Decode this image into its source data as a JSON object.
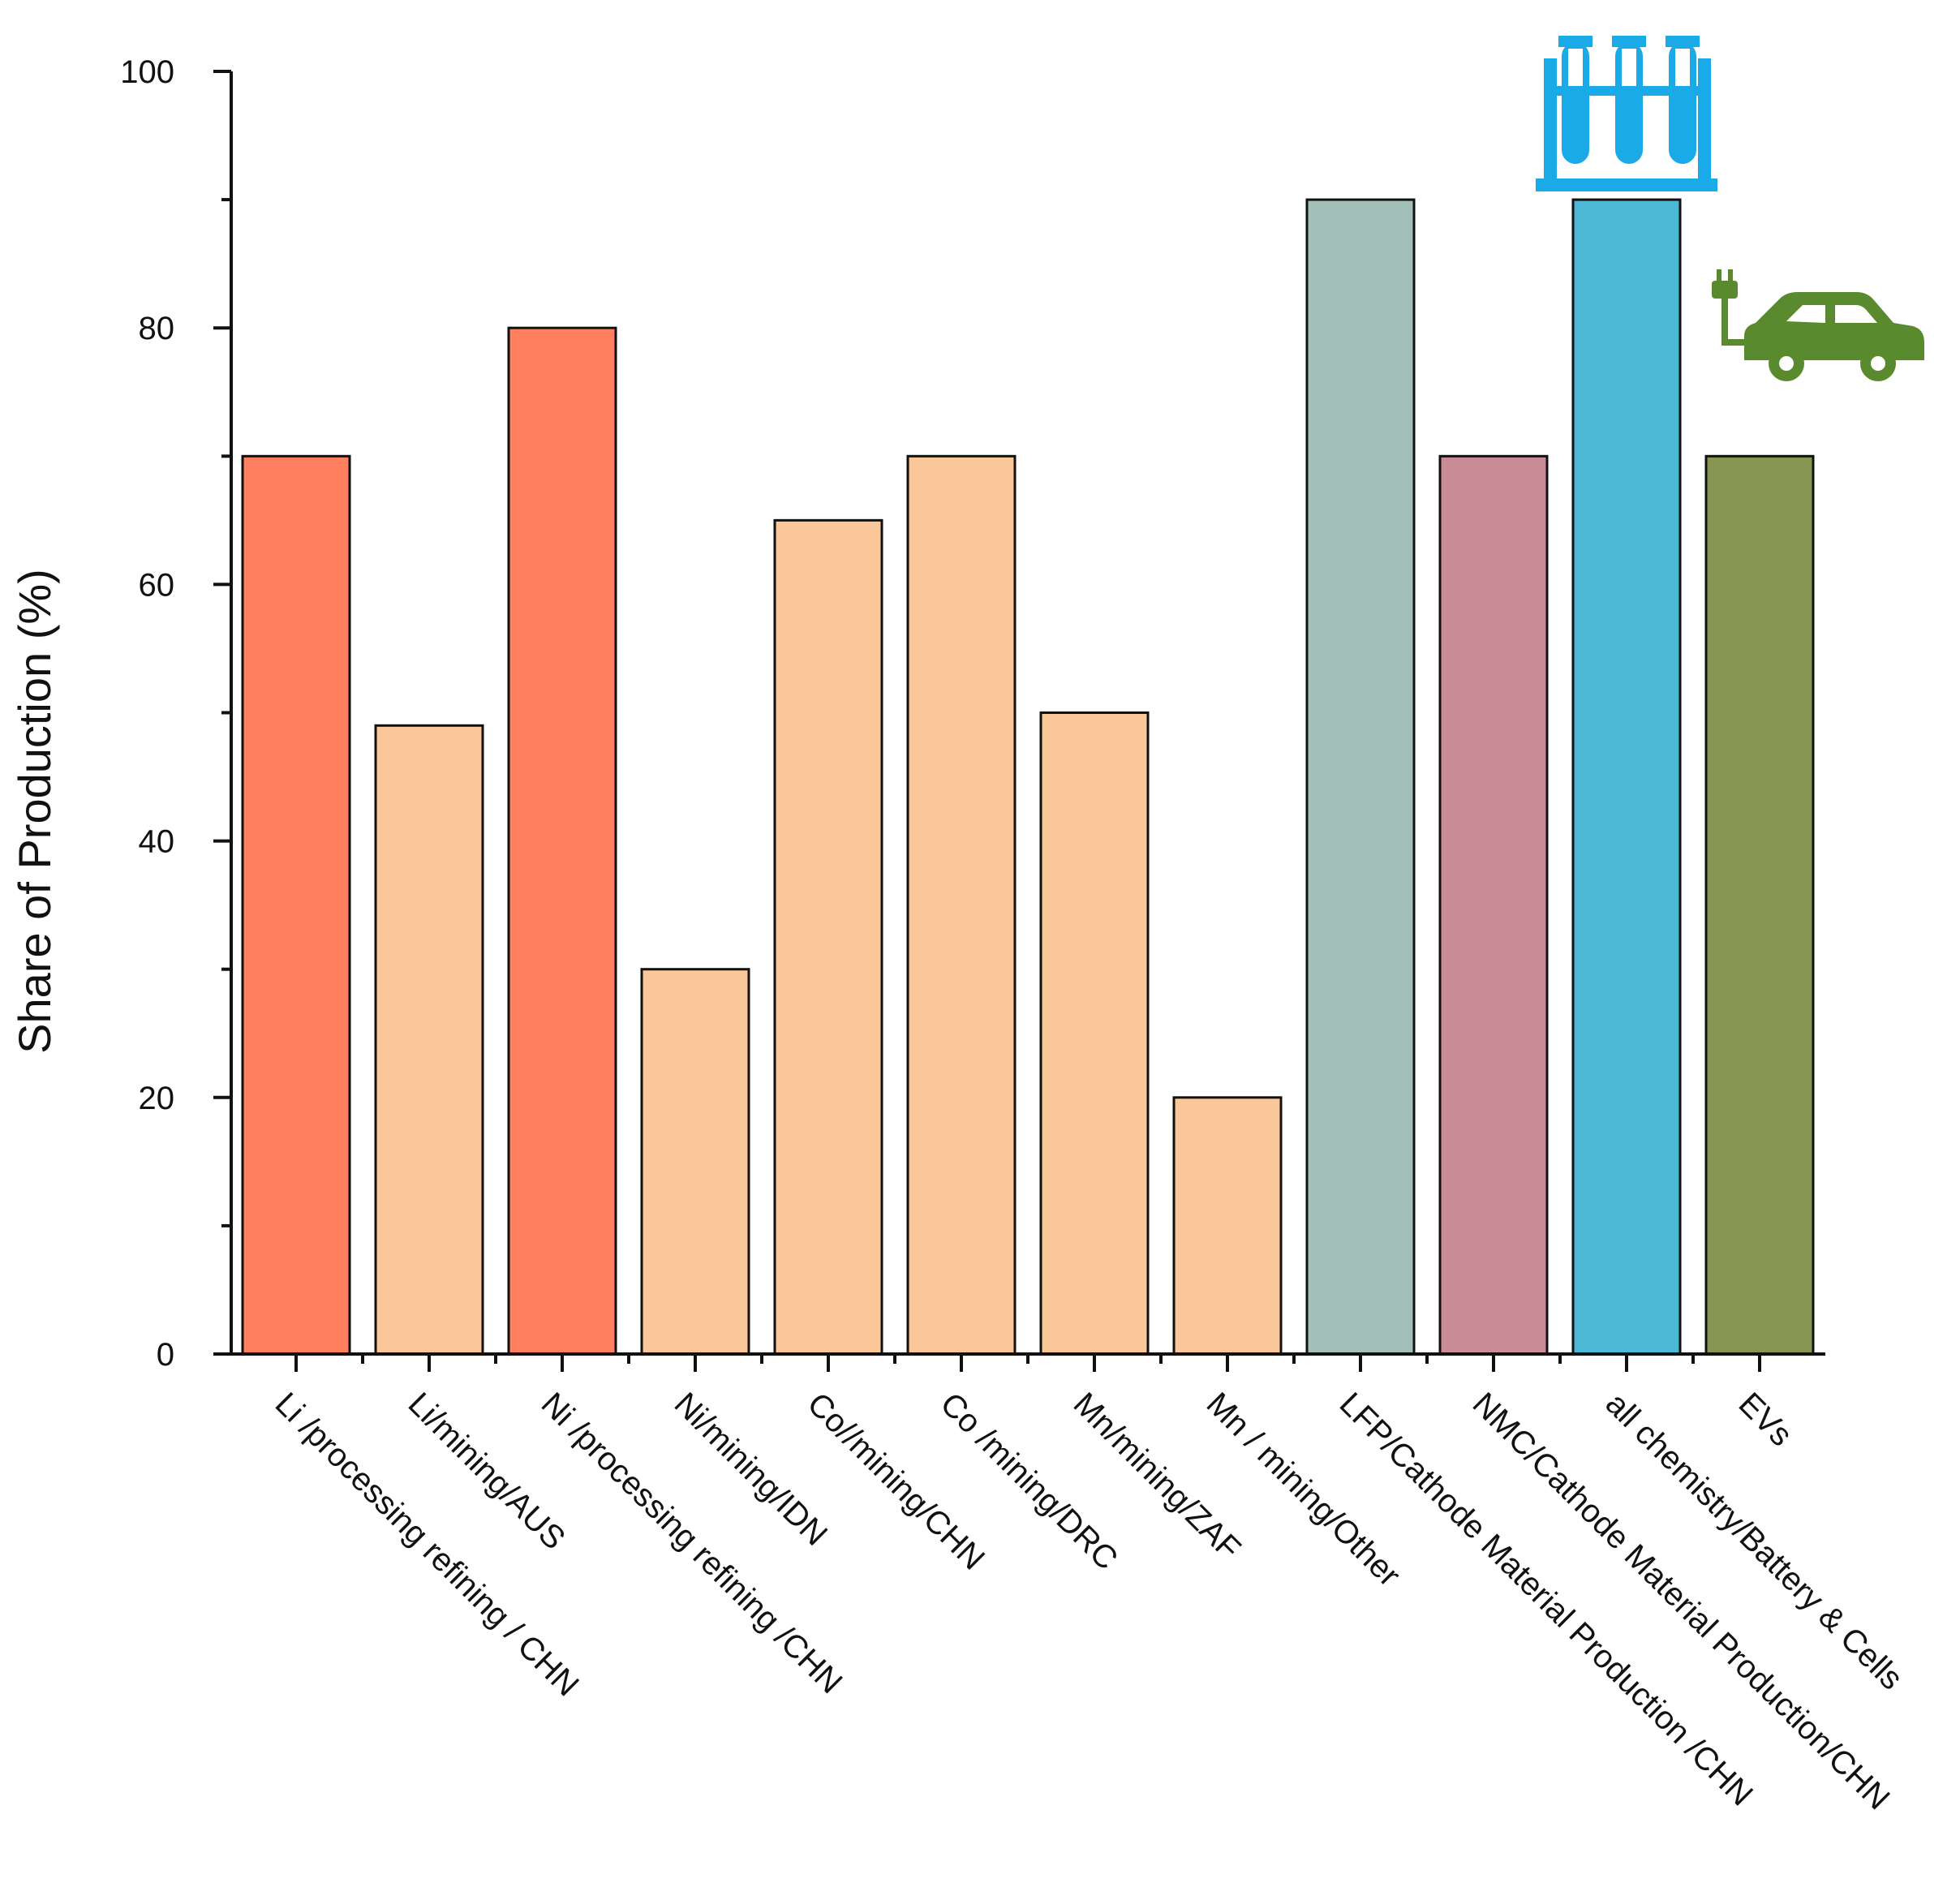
{
  "chart_data": {
    "type": "bar",
    "title": "",
    "xlabel": "",
    "ylabel": "Share of Production (%)",
    "ylim": [
      0,
      100
    ],
    "yticks": [
      0,
      20,
      40,
      60,
      80,
      100
    ],
    "grid": false,
    "legend": "none",
    "categories": [
      "Li /processing refining / CHN",
      "Li/mining/AUS",
      "Ni /processing refining /CHN",
      "Ni/mining/IDN",
      "Co//mining/CHN",
      "Co /mining/DRC",
      "Mn/mining/ZAF",
      "Mn / mining/Other",
      "LFP/Cathode Material Production /CHN",
      "NMC/Cathode Material Production/CHN",
      "all chemistry/Battery & Cells",
      "EVs"
    ],
    "values": [
      70,
      49,
      80,
      30,
      65,
      70,
      50,
      20,
      90,
      70,
      90,
      70
    ],
    "bar_colors": [
      "#ff7f5e",
      "#fac898",
      "#ff7f5e",
      "#fac898",
      "#fac898",
      "#fac898",
      "#fac898",
      "#fac898",
      "#a3c0b8",
      "#c98c97",
      "#4db8d6",
      "#869650"
    ],
    "icons": [
      "test-tubes-icon",
      "electric-car-icon"
    ],
    "icon_colors": {
      "test_tubes": "#1aaae8",
      "car": "#5a8a2e"
    }
  }
}
